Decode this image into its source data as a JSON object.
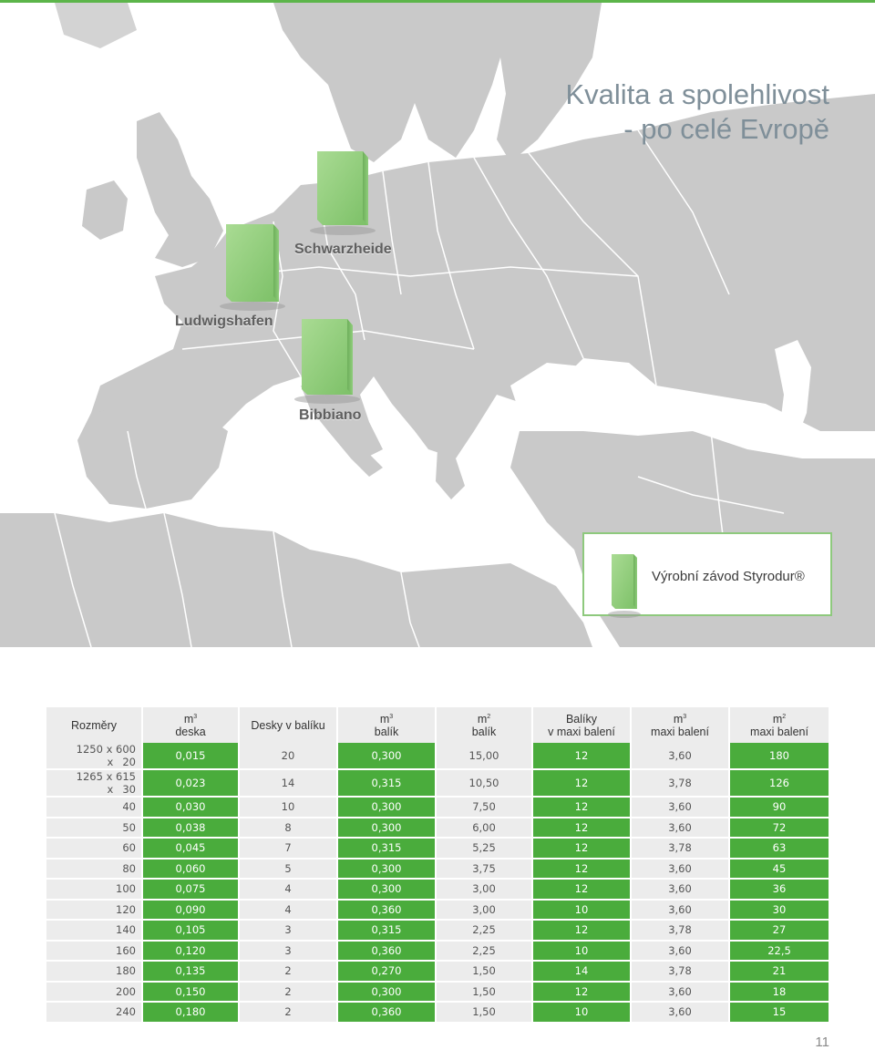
{
  "title": {
    "line1": "Kvalita a spolehlivost",
    "line2": "- po celé Evropě"
  },
  "map": {
    "plants": [
      "Schwarzheide",
      "Ludwigshafen",
      "Bibbiano"
    ],
    "legend": "Výrobní závod Styrodur®",
    "colors": {
      "land": "#c9c9c9",
      "sea": "#ffffff",
      "border": "#ffffff",
      "box": "#8fcd7b"
    }
  },
  "table": {
    "headers": [
      {
        "top": "Rozměry",
        "bottom": ""
      },
      {
        "top": "m3",
        "bottom": "deska"
      },
      {
        "top": "Desky v balíku",
        "bottom": ""
      },
      {
        "top": "m3",
        "bottom": "balík"
      },
      {
        "top": "m2",
        "bottom": "balík"
      },
      {
        "top": "Balíky",
        "bottom": "v maxi balení"
      },
      {
        "top": "m3",
        "bottom": "maxi balení"
      },
      {
        "top": "m2",
        "bottom": "maxi balení"
      }
    ],
    "rows": [
      [
        "1250 x 600 x",
        "20",
        "0,015",
        "20",
        "0,300",
        "15,00",
        "12",
        "3,60",
        "180"
      ],
      [
        "1265 x 615 x",
        "30",
        "0,023",
        "14",
        "0,315",
        "10,50",
        "12",
        "3,78",
        "126"
      ],
      [
        "",
        "40",
        "0,030",
        "10",
        "0,300",
        "7,50",
        "12",
        "3,60",
        "90"
      ],
      [
        "",
        "50",
        "0,038",
        "8",
        "0,300",
        "6,00",
        "12",
        "3,60",
        "72"
      ],
      [
        "",
        "60",
        "0,045",
        "7",
        "0,315",
        "5,25",
        "12",
        "3,78",
        "63"
      ],
      [
        "",
        "80",
        "0,060",
        "5",
        "0,300",
        "3,75",
        "12",
        "3,60",
        "45"
      ],
      [
        "",
        "100",
        "0,075",
        "4",
        "0,300",
        "3,00",
        "12",
        "3,60",
        "36"
      ],
      [
        "",
        "120",
        "0,090",
        "4",
        "0,360",
        "3,00",
        "10",
        "3,60",
        "30"
      ],
      [
        "",
        "140",
        "0,105",
        "3",
        "0,315",
        "2,25",
        "12",
        "3,78",
        "27"
      ],
      [
        "",
        "160",
        "0,120",
        "3",
        "0,360",
        "2,25",
        "10",
        "3,60",
        "22,5"
      ],
      [
        "",
        "180",
        "0,135",
        "2",
        "0,270",
        "1,50",
        "14",
        "3,78",
        "21"
      ],
      [
        "",
        "200",
        "0,150",
        "2",
        "0,300",
        "1,50",
        "12",
        "3,60",
        "18"
      ],
      [
        "",
        "240",
        "0,180",
        "2",
        "0,360",
        "1,50",
        "10",
        "3,60",
        "15"
      ]
    ],
    "colors": {
      "green": "#4aac3c",
      "grey": "#ececec"
    }
  },
  "page_number": "11"
}
